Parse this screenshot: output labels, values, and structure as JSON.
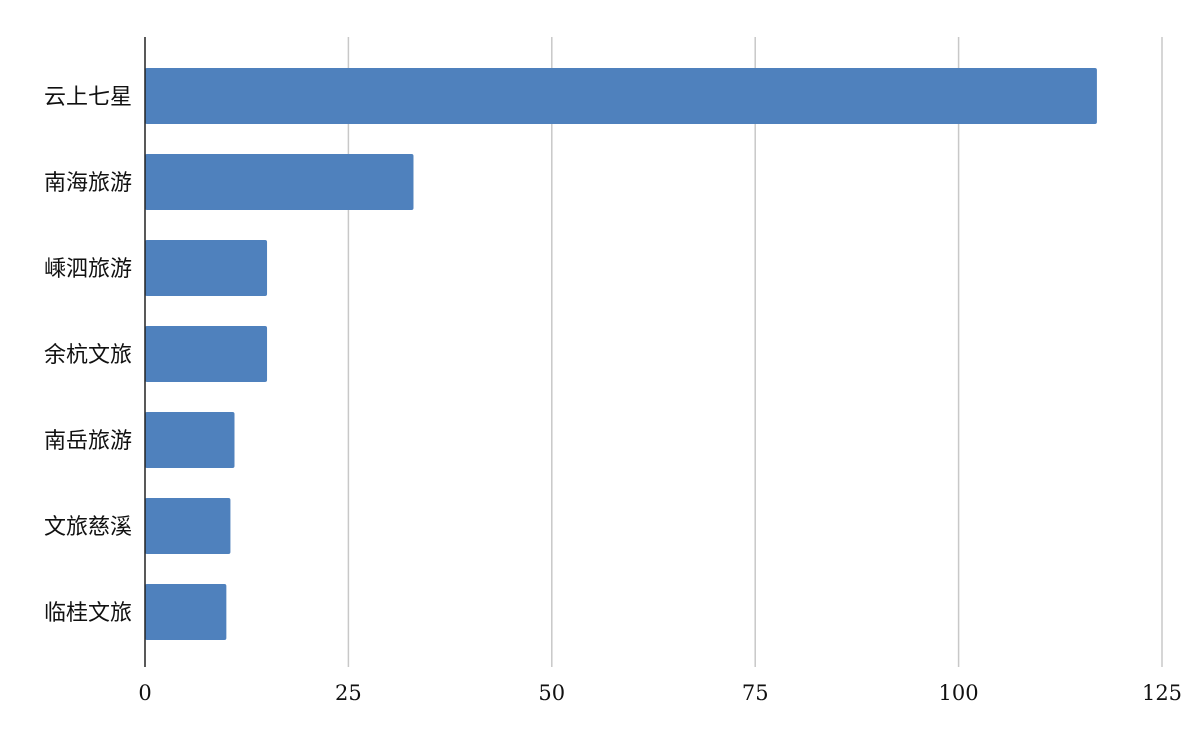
{
  "chart_data": {
    "type": "bar",
    "orientation": "horizontal",
    "title": "",
    "xlabel": "",
    "ylabel": "",
    "categories": [
      "云上七星",
      "南海旅游",
      "嵊泗旅游",
      "余杭文旅",
      "南岳旅游",
      "文旅慈溪",
      "临桂文旅"
    ],
    "values": [
      117,
      33,
      15,
      15,
      11,
      10.5,
      10
    ],
    "xlim": [
      0,
      125
    ],
    "xticks": [
      0,
      25,
      50,
      75,
      100,
      125
    ],
    "tick_labels": [
      "0",
      "25",
      "50",
      "75",
      "100",
      "125"
    ],
    "grid": "vertical",
    "legend": "none",
    "bar_color": "#4f81bd"
  }
}
